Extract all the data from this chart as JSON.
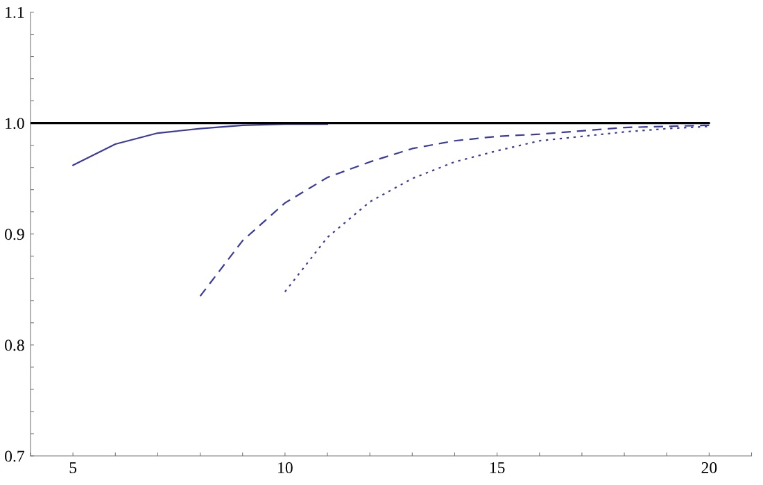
{
  "chart_data": {
    "type": "line",
    "xlim": [
      4,
      21
    ],
    "xticks": [
      {
        "value": 4,
        "label": null
      },
      5,
      {
        "value": 6,
        "label": null
      },
      {
        "value": 7,
        "label": null
      },
      {
        "value": 8,
        "label": null
      },
      {
        "value": 9,
        "label": null
      },
      10,
      {
        "value": 11,
        "label": null
      },
      {
        "value": 12,
        "label": null
      },
      {
        "value": 13,
        "label": null
      },
      {
        "value": 14,
        "label": null
      },
      15,
      {
        "value": 16,
        "label": null
      },
      {
        "value": 17,
        "label": null
      },
      {
        "value": 18,
        "label": null
      },
      {
        "value": 19,
        "label": null
      },
      20,
      {
        "value": 21,
        "label": null
      }
    ],
    "ylim": [
      0.7,
      1.1
    ],
    "yticks": [
      {
        "value": 0.7,
        "label": "0.7"
      },
      {
        "value": 0.72,
        "label": null
      },
      {
        "value": 0.74,
        "label": null
      },
      {
        "value": 0.76,
        "label": null
      },
      {
        "value": 0.78,
        "label": null
      },
      {
        "value": 0.8,
        "label": "0.8"
      },
      {
        "value": 0.82,
        "label": null
      },
      {
        "value": 0.84,
        "label": null
      },
      {
        "value": 0.86,
        "label": null
      },
      {
        "value": 0.88,
        "label": null
      },
      {
        "value": 0.9,
        "label": "0.9"
      },
      {
        "value": 0.92,
        "label": null
      },
      {
        "value": 0.94,
        "label": null
      },
      {
        "value": 0.96,
        "label": null
      },
      {
        "value": 0.98,
        "label": null
      },
      {
        "value": 1.0,
        "label": "1.0"
      },
      {
        "value": 1.02,
        "label": null
      },
      {
        "value": 1.04,
        "label": null
      },
      {
        "value": 1.06,
        "label": null
      },
      {
        "value": 1.08,
        "label": null
      },
      {
        "value": 1.1,
        "label": "1.1"
      }
    ],
    "grid": false,
    "legend": false,
    "series": [
      {
        "color": "#3b3b9e",
        "line_style": "solid",
        "x": [
          5,
          6,
          7,
          8,
          9,
          10,
          11
        ],
        "values": [
          0.962,
          0.981,
          0.991,
          0.995,
          0.998,
          0.999,
          0.999
        ]
      },
      {
        "color": "#3b3b9e",
        "line_style": "dashed",
        "x": [
          8,
          9,
          10,
          11,
          12,
          13,
          14,
          15,
          16,
          17,
          18,
          19,
          20
        ],
        "values": [
          0.844,
          0.894,
          0.928,
          0.951,
          0.965,
          0.977,
          0.984,
          0.988,
          0.99,
          0.993,
          0.996,
          0.997,
          0.998
        ]
      },
      {
        "color": "#3b3b9e",
        "line_style": "dotted",
        "x": [
          10,
          11,
          12,
          13,
          14,
          15,
          16,
          17,
          18,
          19,
          20
        ],
        "values": [
          0.848,
          0.897,
          0.929,
          0.95,
          0.965,
          0.975,
          0.984,
          0.988,
          0.992,
          0.995,
          0.997
        ]
      },
      {
        "color": "#000000",
        "line_style": "solid",
        "x": [
          4,
          20
        ],
        "values": [
          1.0,
          1.0
        ]
      }
    ]
  }
}
